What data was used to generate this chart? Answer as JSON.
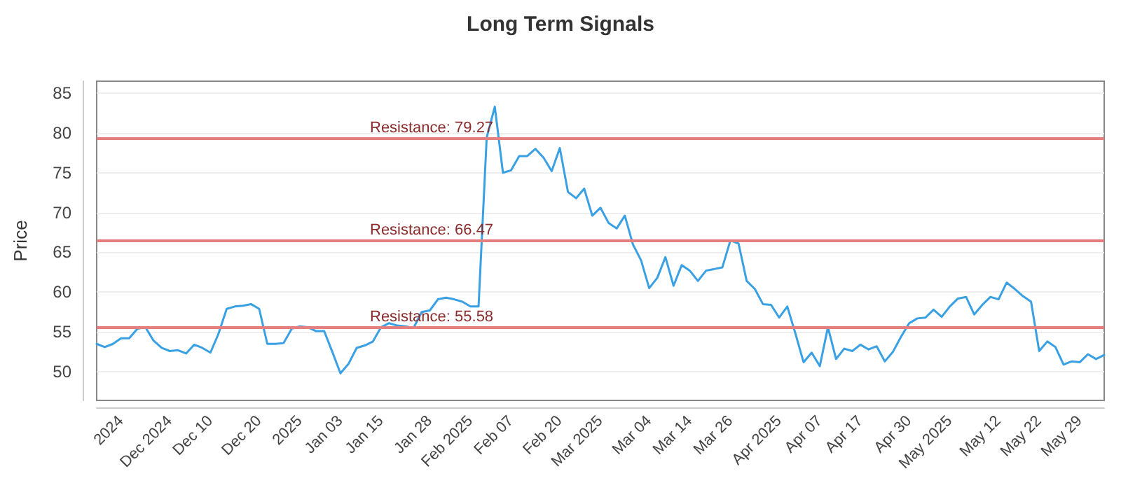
{
  "chart_data": {
    "type": "line",
    "title": "Long Term Signals",
    "ylabel": "Price",
    "categories": [
      null,
      null,
      null,
      "2024",
      null,
      null,
      null,
      null,
      null,
      "Dec 2024",
      null,
      null,
      null,
      null,
      "Dec 10",
      null,
      null,
      null,
      null,
      null,
      "Dec 20",
      null,
      null,
      null,
      null,
      "2025",
      null,
      null,
      null,
      null,
      "Jan 03",
      null,
      null,
      null,
      null,
      "Jan 15",
      null,
      null,
      null,
      null,
      null,
      "Jan 28",
      null,
      null,
      null,
      null,
      "Feb 2025",
      null,
      null,
      null,
      null,
      "Feb 07",
      null,
      null,
      null,
      null,
      null,
      "Feb 20",
      null,
      null,
      null,
      null,
      "Mar 2025",
      null,
      null,
      null,
      null,
      null,
      "Mar 04",
      null,
      null,
      null,
      null,
      "Mar 14",
      null,
      null,
      null,
      null,
      "Mar 26",
      null,
      null,
      null,
      null,
      null,
      "Apr 2025",
      null,
      null,
      null,
      null,
      "Apr 07",
      null,
      null,
      null,
      null,
      "Apr 17",
      null,
      null,
      null,
      null,
      null,
      "Apr 30",
      null,
      null,
      null,
      null,
      "May 2025",
      null,
      null,
      null,
      null,
      null,
      "May 12",
      null,
      null,
      null,
      null,
      "May 22",
      null,
      null,
      null,
      null,
      "May 29",
      null,
      null,
      null
    ],
    "series": [
      {
        "color": "#3aa0e4",
        "values": [
          53.5,
          53.1,
          53.5,
          54.2,
          54.2,
          55.4,
          55.6,
          53.9,
          53.0,
          52.6,
          52.7,
          52.3,
          53.4,
          53.0,
          52.4,
          54.8,
          57.9,
          58.2,
          58.3,
          58.5,
          57.9,
          53.5,
          53.5,
          53.6,
          55.4,
          55.7,
          55.6,
          55.1,
          55.1,
          52.5,
          49.8,
          51.0,
          53.0,
          53.3,
          53.8,
          55.6,
          56.1,
          55.8,
          55.7,
          55.5,
          57.5,
          57.7,
          59.1,
          59.3,
          59.1,
          58.8,
          58.2,
          58.2,
          79.4,
          83.3,
          75.0,
          75.3,
          77.1,
          77.1,
          78.0,
          76.9,
          75.2,
          78.1,
          72.6,
          71.8,
          73.0,
          69.6,
          70.6,
          68.7,
          68.0,
          69.6,
          66.0,
          64.0,
          60.5,
          61.8,
          64.4,
          60.8,
          63.4,
          62.7,
          61.4,
          62.7,
          62.9,
          63.1,
          66.5,
          66.1,
          61.4,
          60.4,
          58.5,
          58.4,
          56.8,
          58.2,
          54.8,
          51.2,
          52.4,
          50.7,
          55.6,
          51.6,
          52.9,
          52.6,
          53.4,
          52.8,
          53.2,
          51.3,
          52.5,
          54.4,
          56.1,
          56.7,
          56.8,
          57.8,
          56.9,
          58.2,
          59.2,
          59.4,
          57.2,
          58.4,
          59.4,
          59.1,
          61.2,
          60.4,
          59.5,
          58.8,
          52.6,
          53.8,
          53.1,
          50.9,
          51.3,
          51.2,
          52.2,
          51.6,
          52.1
        ]
      }
    ],
    "ylim": [
      46.4,
      86.5
    ],
    "yticks": [
      50,
      55,
      60,
      65,
      70,
      75,
      80,
      85
    ],
    "grid": "y",
    "marker": "none",
    "line_style": "solid",
    "ref_lines": [
      {
        "axis": "y",
        "value": 79.27,
        "label": "Resistance: 79.27",
        "color": "#e57f7f"
      },
      {
        "axis": "y",
        "value": 66.47,
        "label": "Resistance: 66.47",
        "color": "#e57f7f"
      },
      {
        "axis": "y",
        "value": 55.58,
        "label": "Resistance: 55.58",
        "color": "#e57f7f"
      }
    ]
  }
}
